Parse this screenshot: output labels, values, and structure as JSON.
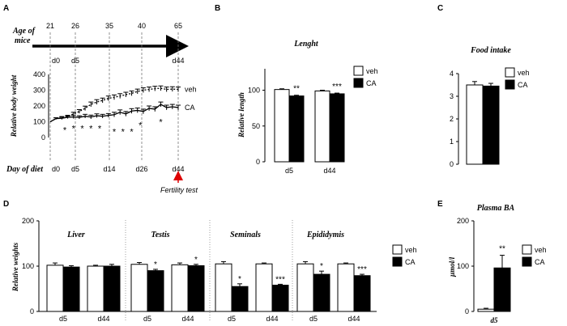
{
  "chart_data": [
    {
      "panel": "A",
      "type": "line",
      "age_label": "Age of mice",
      "age_ticks": [
        "21",
        "26",
        "35",
        "40",
        "65"
      ],
      "top_day_ticks": [
        "d0",
        "d5",
        "d44"
      ],
      "diet_label": "Day of diet",
      "diet_ticks": [
        "d0",
        "d5",
        "d14",
        "d26",
        "d44"
      ],
      "ylabel": "Relative body weight",
      "ylim": [
        0,
        400
      ],
      "yticks": [
        "0",
        "100",
        "200",
        "300",
        "400"
      ],
      "x": [
        0,
        2,
        4,
        6,
        8,
        10,
        12,
        14,
        16,
        18,
        20,
        22,
        24,
        26,
        28,
        30,
        32,
        34,
        36,
        38,
        40,
        42,
        44
      ],
      "series": [
        {
          "name": "veh",
          "values": [
            100,
            120,
            125,
            133,
            150,
            165,
            185,
            210,
            225,
            235,
            248,
            255,
            263,
            272,
            280,
            292,
            300,
            305,
            310,
            312,
            305,
            307,
            305
          ],
          "errors": [
            0,
            5,
            8,
            8,
            10,
            12,
            14,
            15,
            15,
            15,
            15,
            15,
            15,
            15,
            15,
            15,
            15,
            15,
            15,
            15,
            15,
            15,
            15
          ]
        },
        {
          "name": "CA",
          "values": [
            100,
            120,
            122,
            128,
            130,
            128,
            135,
            130,
            138,
            135,
            140,
            145,
            160,
            150,
            168,
            172,
            165,
            185,
            180,
            210,
            190,
            195,
            190
          ],
          "errors": [
            0,
            5,
            8,
            8,
            10,
            10,
            12,
            12,
            12,
            12,
            12,
            15,
            15,
            15,
            15,
            15,
            15,
            15,
            15,
            15,
            15,
            15,
            15
          ]
        }
      ],
      "stars": [
        {
          "day": 5,
          "value": 70
        },
        {
          "day": 8,
          "value": 80
        },
        {
          "day": 11,
          "value": 80
        },
        {
          "day": 14,
          "value": 80
        },
        {
          "day": 17,
          "value": 80
        },
        {
          "day": 22,
          "value": 60
        },
        {
          "day": 25,
          "value": 60
        },
        {
          "day": 28,
          "value": 60
        },
        {
          "day": 31,
          "value": 100
        },
        {
          "day": 38,
          "value": 120
        }
      ],
      "star_text": "*",
      "annotation": "Fertility test"
    },
    {
      "panel": "B",
      "type": "bar",
      "title": "Lenght",
      "ylabel": "Relative length",
      "ylim": [
        0,
        130
      ],
      "yticks": [
        "0",
        "50",
        "100"
      ],
      "categories": [
        "d5",
        "d44"
      ],
      "legend": [
        "veh",
        "CA"
      ],
      "series": [
        {
          "name": "veh",
          "values": [
            101,
            99
          ],
          "errors": [
            1,
            1
          ]
        },
        {
          "name": "CA",
          "values": [
            92,
            95
          ],
          "errors": [
            1,
            1
          ]
        }
      ],
      "significance": [
        "**",
        "***"
      ]
    },
    {
      "panel": "C",
      "type": "bar",
      "title": "Food intake",
      "ylabel": "",
      "ylim": [
        0,
        4
      ],
      "yticks": [
        "0",
        "1",
        "2",
        "3",
        "4"
      ],
      "categories": [
        ""
      ],
      "legend": [
        "veh",
        "CA"
      ],
      "series": [
        {
          "name": "veh",
          "values": [
            3.5
          ],
          "errors": [
            0.15
          ]
        },
        {
          "name": "CA",
          "values": [
            3.45
          ],
          "errors": [
            0.12
          ]
        }
      ]
    },
    {
      "panel": "D",
      "type": "bar",
      "ylabel": "Relative weights",
      "ylim": [
        0,
        200
      ],
      "yticks": [
        "0",
        "100",
        "200"
      ],
      "legend": [
        "veh",
        "CA"
      ],
      "groups": [
        {
          "title": "Liver",
          "categories": [
            "d5",
            "d44"
          ],
          "veh": [
            102,
            100
          ],
          "veh_err": [
            5,
            2
          ],
          "ca": [
            98,
            100
          ],
          "ca_err": [
            3,
            4
          ],
          "sig": [
            "",
            ""
          ]
        },
        {
          "title": "Testis",
          "categories": [
            "d5",
            "d44"
          ],
          "veh": [
            104,
            103
          ],
          "veh_err": [
            4,
            4
          ],
          "ca": [
            90,
            101
          ],
          "ca_err": [
            3,
            3
          ],
          "sig": [
            "*",
            "*"
          ]
        },
        {
          "title": "Seminals",
          "categories": [
            "d5",
            "d44"
          ],
          "veh": [
            105,
            105
          ],
          "veh_err": [
            5,
            2
          ],
          "ca": [
            55,
            58
          ],
          "ca_err": [
            6,
            2
          ],
          "sig": [
            "*",
            "***"
          ]
        },
        {
          "title": "Epididymis",
          "categories": [
            "d5",
            "d44"
          ],
          "veh": [
            105,
            105
          ],
          "veh_err": [
            5,
            2
          ],
          "ca": [
            82,
            79
          ],
          "ca_err": [
            7,
            3
          ],
          "sig": [
            "*",
            "***"
          ]
        }
      ]
    },
    {
      "panel": "E",
      "type": "bar",
      "title": "Plasma BA",
      "ylabel": "µmol/l",
      "ylim": [
        0,
        200
      ],
      "yticks": [
        "0",
        "100",
        "200"
      ],
      "categories": [
        "d5"
      ],
      "legend": [
        "veh",
        "CA"
      ],
      "series": [
        {
          "name": "veh",
          "values": [
            5
          ],
          "errors": [
            2
          ]
        },
        {
          "name": "CA",
          "values": [
            96
          ],
          "errors": [
            28
          ]
        }
      ],
      "significance": [
        "**"
      ]
    }
  ]
}
